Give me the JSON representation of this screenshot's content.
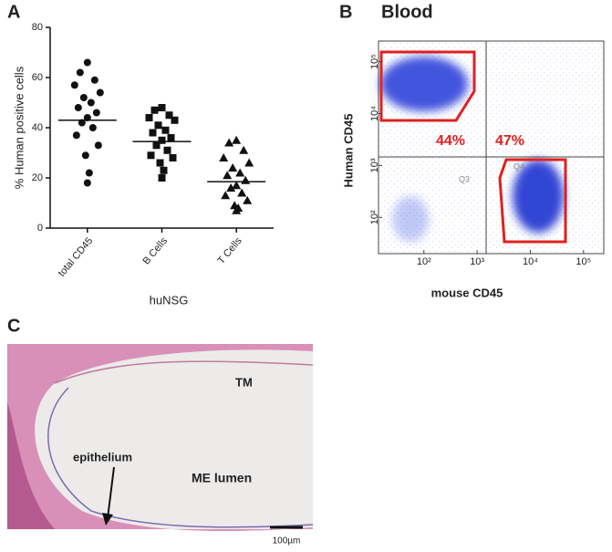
{
  "chart_data": {
    "type": "dot",
    "label": "A",
    "y_label": "% Human positive cells",
    "x_label": "huNSG",
    "categories": [
      "total CD45",
      "B Cells",
      "T Cells"
    ],
    "markers": [
      "circle",
      "square",
      "triangle"
    ],
    "points": [
      [
        66,
        62,
        59,
        57,
        54,
        52,
        50,
        48,
        46,
        44,
        42,
        40,
        37,
        33,
        29,
        22,
        18
      ],
      [
        48,
        47,
        45,
        44,
        43,
        41,
        39,
        38,
        36,
        35,
        33,
        31,
        29,
        28,
        26,
        23,
        20
      ],
      [
        35,
        34,
        31,
        28,
        26,
        24,
        22,
        21,
        19,
        17,
        16,
        14,
        13,
        11,
        9,
        8,
        7
      ]
    ],
    "means": [
      43,
      34.5,
      18.5
    ],
    "color": "#111111",
    "ylim": [
      0,
      80
    ],
    "yticks": [
      0,
      20,
      40,
      60,
      80
    ]
  },
  "panel_b": {
    "label": "B",
    "title": "Blood",
    "y_label": "Human CD45",
    "x_label": "mouse CD45",
    "gate_labels": [
      "44%",
      "47%"
    ],
    "quadrant_labels": [
      "Q3",
      "Q4"
    ],
    "log_scale": true,
    "xlim": [
      14,
      240000
    ],
    "xticks": [
      {
        "value": 100,
        "label": "10²"
      },
      {
        "value": 1000,
        "label": "10³"
      },
      {
        "value": 10000,
        "label": "10⁴"
      },
      {
        "value": 100000,
        "label": "10⁵"
      }
    ],
    "ylim": [
      20,
      250000
    ],
    "yticks": [
      {
        "value": 100,
        "label": "10²"
      },
      {
        "value": 1000,
        "label": "10³"
      },
      {
        "value": 10000,
        "label": "10⁴"
      },
      {
        "value": 100000,
        "label": "10⁵"
      }
    ]
  },
  "panel_c": {
    "label": "C",
    "labels": [
      "TM",
      "ME lumen",
      "epithelium"
    ],
    "scale_bar": "100µm"
  }
}
